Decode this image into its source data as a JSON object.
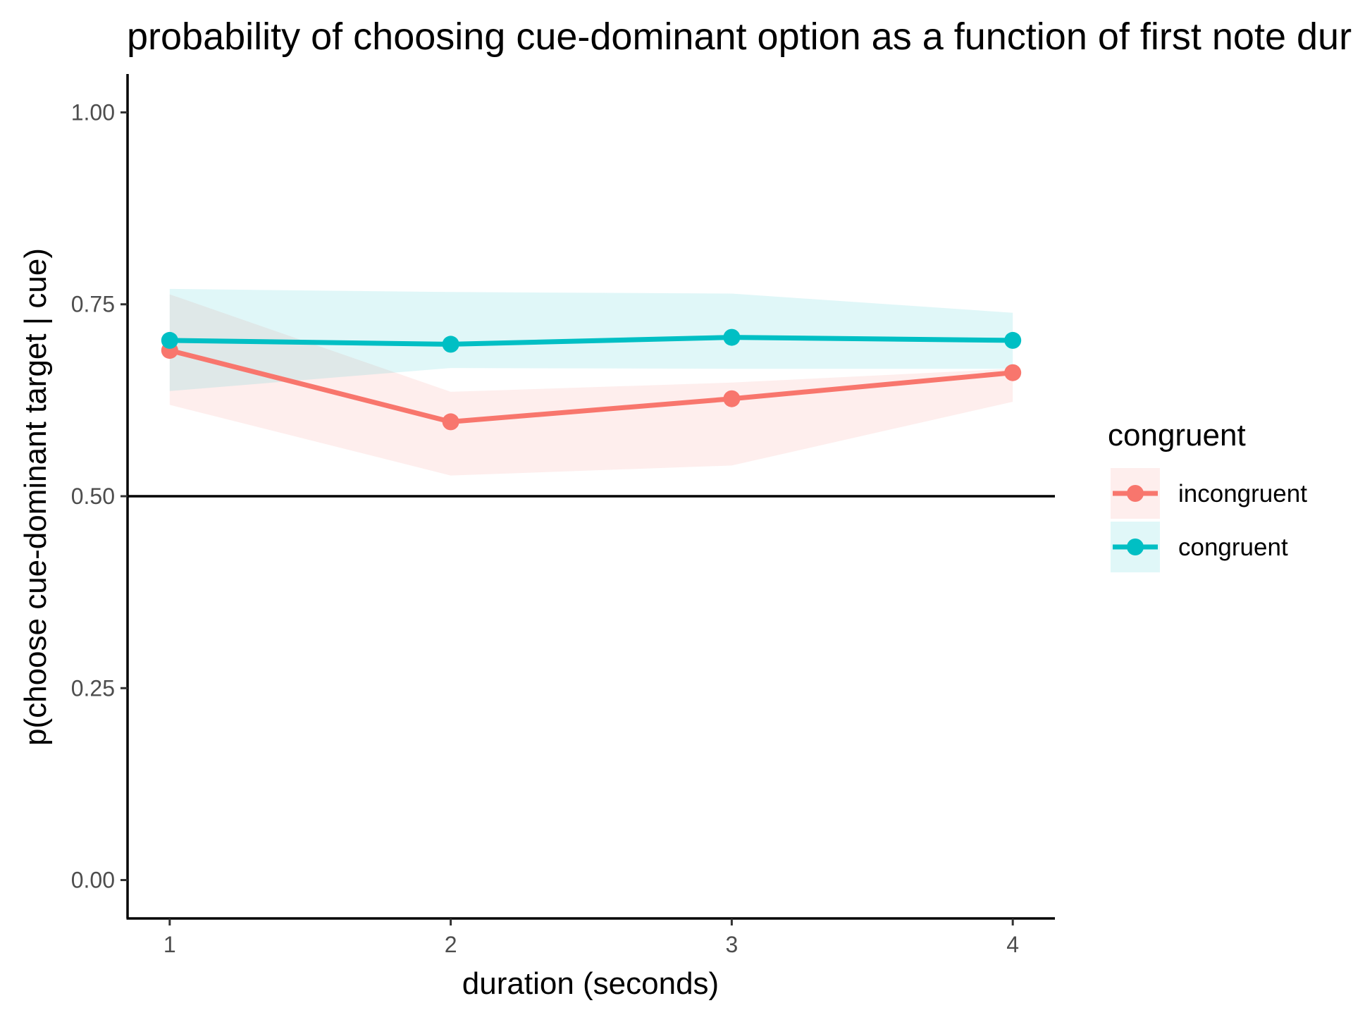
{
  "chart_data": {
    "type": "line",
    "title": "probability of choosing cue-dominant option as a function of first note duration",
    "xlabel": "duration (seconds)",
    "ylabel": "p(choose cue-dominant target | cue)",
    "x": [
      1,
      2,
      3,
      4
    ],
    "x_tick_labels": [
      "1",
      "2",
      "3",
      "4"
    ],
    "y_ticks": [
      0.0,
      0.25,
      0.5,
      0.75,
      1.0
    ],
    "y_tick_labels": [
      "0.00",
      "0.25",
      "0.50",
      "0.75",
      "1.00"
    ],
    "xlim": [
      0.85,
      4.15
    ],
    "ylim": [
      -0.05,
      1.05
    ],
    "reference_line_y": 0.5,
    "legend": {
      "title": "congruent",
      "placement": "right"
    },
    "series": [
      {
        "name": "incongruent",
        "color": "#F8766D",
        "values": [
          0.69,
          0.597,
          0.627,
          0.661
        ],
        "ribbon_lower": [
          0.619,
          0.527,
          0.54,
          0.623
        ],
        "ribbon_upper": [
          0.763,
          0.636,
          0.648,
          0.666
        ]
      },
      {
        "name": "congruent",
        "color": "#00BFC4",
        "values": [
          0.703,
          0.698,
          0.707,
          0.703
        ],
        "ribbon_lower": [
          0.637,
          0.667,
          0.666,
          0.666
        ],
        "ribbon_upper": [
          0.77,
          0.766,
          0.764,
          0.739
        ]
      }
    ]
  }
}
